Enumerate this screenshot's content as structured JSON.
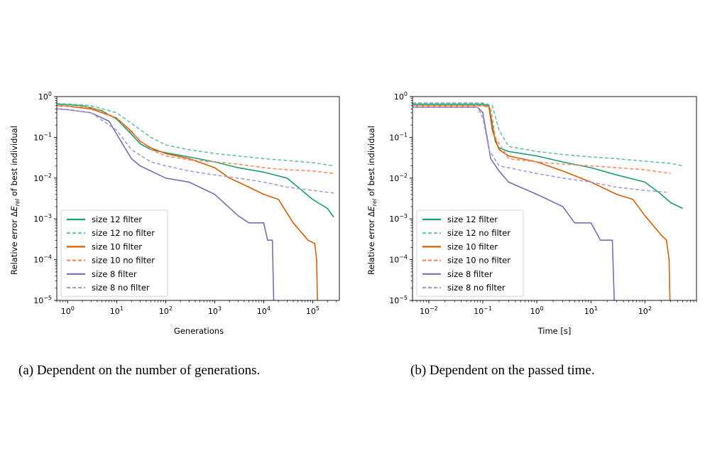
{
  "chart_data": [
    {
      "type": "line",
      "xscale": "log",
      "yscale": "log",
      "xlim": [
        0.6,
        350000
      ],
      "ylim": [
        1e-05,
        1
      ],
      "xlabel": "Generations",
      "ylabel": "Relative error ΔE_rel of best individual",
      "caption": "(a)  Dependent on the number of generations.",
      "xticks": [
        {
          "v": 1,
          "base": "10",
          "exp": "0"
        },
        {
          "v": 10,
          "base": "10",
          "exp": "1"
        },
        {
          "v": 100,
          "base": "10",
          "exp": "2"
        },
        {
          "v": 1000,
          "base": "10",
          "exp": "3"
        },
        {
          "v": 10000,
          "base": "10",
          "exp": "4"
        },
        {
          "v": 100000,
          "base": "10",
          "exp": "5"
        }
      ],
      "yticks": [
        {
          "v": 1,
          "base": "10",
          "exp": "0"
        },
        {
          "v": 0.1,
          "base": "10",
          "exp": "−1"
        },
        {
          "v": 0.01,
          "base": "10",
          "exp": "−2"
        },
        {
          "v": 0.001,
          "base": "10",
          "exp": "−3"
        },
        {
          "v": 0.0001,
          "base": "10",
          "exp": "−4"
        },
        {
          "v": 1e-05,
          "base": "10",
          "exp": "−5"
        }
      ],
      "legend_position": "lower-left",
      "series": [
        {
          "name": "size 12 filter",
          "color": "#1b9e77",
          "dashed": false,
          "points": [
            [
              0.6,
              0.65
            ],
            [
              1,
              0.63
            ],
            [
              2,
              0.6
            ],
            [
              5,
              0.45
            ],
            [
              10,
              0.28
            ],
            [
              20,
              0.12
            ],
            [
              30,
              0.07
            ],
            [
              50,
              0.05
            ],
            [
              100,
              0.042
            ],
            [
              300,
              0.033
            ],
            [
              1000,
              0.025
            ],
            [
              3000,
              0.018
            ],
            [
              10000,
              0.014
            ],
            [
              30000,
              0.01
            ],
            [
              50000,
              0.006
            ],
            [
              100000,
              0.003
            ],
            [
              200000,
              0.0018
            ],
            [
              270000,
              0.0011
            ]
          ]
        },
        {
          "name": "size 12 no filter",
          "color": "#66c2a5",
          "dashed": true,
          "points": [
            [
              0.6,
              0.68
            ],
            [
              1,
              0.66
            ],
            [
              3,
              0.6
            ],
            [
              10,
              0.4
            ],
            [
              20,
              0.22
            ],
            [
              50,
              0.1
            ],
            [
              100,
              0.065
            ],
            [
              300,
              0.05
            ],
            [
              1000,
              0.04
            ],
            [
              3000,
              0.035
            ],
            [
              10000,
              0.03
            ],
            [
              30000,
              0.027
            ],
            [
              100000,
              0.024
            ],
            [
              270000,
              0.02
            ]
          ]
        },
        {
          "name": "size 10 filter",
          "color": "#d95f02",
          "dashed": false,
          "points": [
            [
              0.6,
              0.6
            ],
            [
              1,
              0.58
            ],
            [
              3,
              0.5
            ],
            [
              10,
              0.3
            ],
            [
              20,
              0.14
            ],
            [
              30,
              0.08
            ],
            [
              50,
              0.055
            ],
            [
              100,
              0.04
            ],
            [
              300,
              0.03
            ],
            [
              1000,
              0.018
            ],
            [
              2000,
              0.01
            ],
            [
              3000,
              0.008
            ],
            [
              5000,
              0.006
            ],
            [
              10000,
              0.004
            ],
            [
              20000,
              0.003
            ],
            [
              40000,
              0.0008
            ],
            [
              80000,
              0.0003
            ],
            [
              110000,
              0.00025
            ],
            [
              120000,
              0.0001
            ],
            [
              125000,
              1e-05
            ]
          ]
        },
        {
          "name": "size 10 no filter",
          "color": "#fc8d62",
          "dashed": true,
          "points": [
            [
              0.6,
              0.6
            ],
            [
              1,
              0.58
            ],
            [
              3,
              0.55
            ],
            [
              10,
              0.3
            ],
            [
              20,
              0.13
            ],
            [
              50,
              0.05
            ],
            [
              100,
              0.035
            ],
            [
              300,
              0.028
            ],
            [
              1000,
              0.025
            ],
            [
              3000,
              0.022
            ],
            [
              10000,
              0.018
            ],
            [
              30000,
              0.016
            ],
            [
              100000,
              0.015
            ],
            [
              270000,
              0.013
            ]
          ]
        },
        {
          "name": "size 8 filter",
          "color": "#7570b3",
          "dashed": false,
          "points": [
            [
              0.6,
              0.5
            ],
            [
              1,
              0.48
            ],
            [
              3,
              0.4
            ],
            [
              7,
              0.25
            ],
            [
              10,
              0.12
            ],
            [
              20,
              0.03
            ],
            [
              30,
              0.02
            ],
            [
              100,
              0.01
            ],
            [
              300,
              0.008
            ],
            [
              1000,
              0.004
            ],
            [
              3000,
              0.0012
            ],
            [
              5000,
              0.0008
            ],
            [
              10000,
              0.0008
            ],
            [
              12000,
              0.0003
            ],
            [
              15000,
              0.0003
            ],
            [
              16000,
              1e-05
            ]
          ]
        },
        {
          "name": "size 8 no filter",
          "color": "#a59fd6",
          "dashed": true,
          "points": [
            [
              0.6,
              0.5
            ],
            [
              1,
              0.48
            ],
            [
              3,
              0.4
            ],
            [
              10,
              0.15
            ],
            [
              20,
              0.05
            ],
            [
              50,
              0.025
            ],
            [
              100,
              0.02
            ],
            [
              300,
              0.015
            ],
            [
              1000,
              0.012
            ],
            [
              3000,
              0.01
            ],
            [
              10000,
              0.008
            ],
            [
              30000,
              0.006
            ],
            [
              100000,
              0.005
            ],
            [
              270000,
              0.0043
            ]
          ]
        }
      ]
    },
    {
      "type": "line",
      "xscale": "log",
      "yscale": "log",
      "xlim": [
        0.005,
        900
      ],
      "ylim": [
        1e-05,
        1
      ],
      "xlabel": "Time [s]",
      "ylabel": "Relative error ΔE_rel of best individual",
      "caption": "(b)  Dependent on the passed time.",
      "xticks": [
        {
          "v": 0.01,
          "base": "10",
          "exp": "−2"
        },
        {
          "v": 0.1,
          "base": "10",
          "exp": "−1"
        },
        {
          "v": 1,
          "base": "10",
          "exp": "0"
        },
        {
          "v": 10,
          "base": "10",
          "exp": "1"
        },
        {
          "v": 100,
          "base": "10",
          "exp": "2"
        }
      ],
      "yticks": [
        {
          "v": 1,
          "base": "10",
          "exp": "0"
        },
        {
          "v": 0.1,
          "base": "10",
          "exp": "−1"
        },
        {
          "v": 0.01,
          "base": "10",
          "exp": "−2"
        },
        {
          "v": 0.001,
          "base": "10",
          "exp": "−3"
        },
        {
          "v": 0.0001,
          "base": "10",
          "exp": "−4"
        },
        {
          "v": 1e-05,
          "base": "10",
          "exp": "−5"
        }
      ],
      "legend_position": "lower-left",
      "series": [
        {
          "name": "size 12 filter",
          "color": "#1b9e77",
          "dashed": false,
          "points": [
            [
              0.005,
              0.65
            ],
            [
              0.1,
              0.65
            ],
            [
              0.13,
              0.6
            ],
            [
              0.15,
              0.2
            ],
            [
              0.17,
              0.08
            ],
            [
              0.2,
              0.055
            ],
            [
              0.3,
              0.045
            ],
            [
              1,
              0.035
            ],
            [
              3,
              0.025
            ],
            [
              10,
              0.018
            ],
            [
              30,
              0.012
            ],
            [
              100,
              0.008
            ],
            [
              200,
              0.004
            ],
            [
              300,
              0.0025
            ],
            [
              500,
              0.0018
            ]
          ]
        },
        {
          "name": "size 12 no filter",
          "color": "#66c2a5",
          "dashed": true,
          "points": [
            [
              0.005,
              0.7
            ],
            [
              0.1,
              0.7
            ],
            [
              0.15,
              0.6
            ],
            [
              0.2,
              0.15
            ],
            [
              0.3,
              0.06
            ],
            [
              1,
              0.045
            ],
            [
              3,
              0.038
            ],
            [
              10,
              0.033
            ],
            [
              30,
              0.03
            ],
            [
              100,
              0.026
            ],
            [
              300,
              0.023
            ],
            [
              500,
              0.02
            ]
          ]
        },
        {
          "name": "size 10 filter",
          "color": "#d95f02",
          "dashed": false,
          "points": [
            [
              0.005,
              0.6
            ],
            [
              0.1,
              0.6
            ],
            [
              0.13,
              0.55
            ],
            [
              0.15,
              0.15
            ],
            [
              0.2,
              0.05
            ],
            [
              0.3,
              0.035
            ],
            [
              1,
              0.025
            ],
            [
              3,
              0.015
            ],
            [
              10,
              0.008
            ],
            [
              30,
              0.004
            ],
            [
              60,
              0.003
            ],
            [
              100,
              0.0012
            ],
            [
              200,
              0.0004
            ],
            [
              250,
              0.0003
            ],
            [
              280,
              0.0001
            ],
            [
              290,
              1e-05
            ]
          ]
        },
        {
          "name": "size 10 no filter",
          "color": "#fc8d62",
          "dashed": true,
          "points": [
            [
              0.005,
              0.6
            ],
            [
              0.1,
              0.6
            ],
            [
              0.14,
              0.55
            ],
            [
              0.17,
              0.1
            ],
            [
              0.3,
              0.03
            ],
            [
              1,
              0.025
            ],
            [
              3,
              0.022
            ],
            [
              10,
              0.02
            ],
            [
              30,
              0.018
            ],
            [
              100,
              0.016
            ],
            [
              300,
              0.013
            ]
          ]
        },
        {
          "name": "size 8 filter",
          "color": "#7570b3",
          "dashed": false,
          "points": [
            [
              0.005,
              0.55
            ],
            [
              0.08,
              0.55
            ],
            [
              0.1,
              0.4
            ],
            [
              0.12,
              0.1
            ],
            [
              0.14,
              0.03
            ],
            [
              0.2,
              0.015
            ],
            [
              0.3,
              0.008
            ],
            [
              1,
              0.004
            ],
            [
              3,
              0.002
            ],
            [
              5,
              0.0008
            ],
            [
              10,
              0.0008
            ],
            [
              15,
              0.0003
            ],
            [
              25,
              0.0003
            ],
            [
              27,
              1e-05
            ]
          ]
        },
        {
          "name": "size 8 no filter",
          "color": "#a59fd6",
          "dashed": true,
          "points": [
            [
              0.005,
              0.55
            ],
            [
              0.08,
              0.55
            ],
            [
              0.1,
              0.3
            ],
            [
              0.13,
              0.05
            ],
            [
              0.2,
              0.02
            ],
            [
              1,
              0.013
            ],
            [
              3,
              0.01
            ],
            [
              10,
              0.008
            ],
            [
              30,
              0.006
            ],
            [
              100,
              0.005
            ],
            [
              250,
              0.0045
            ]
          ]
        }
      ]
    }
  ]
}
